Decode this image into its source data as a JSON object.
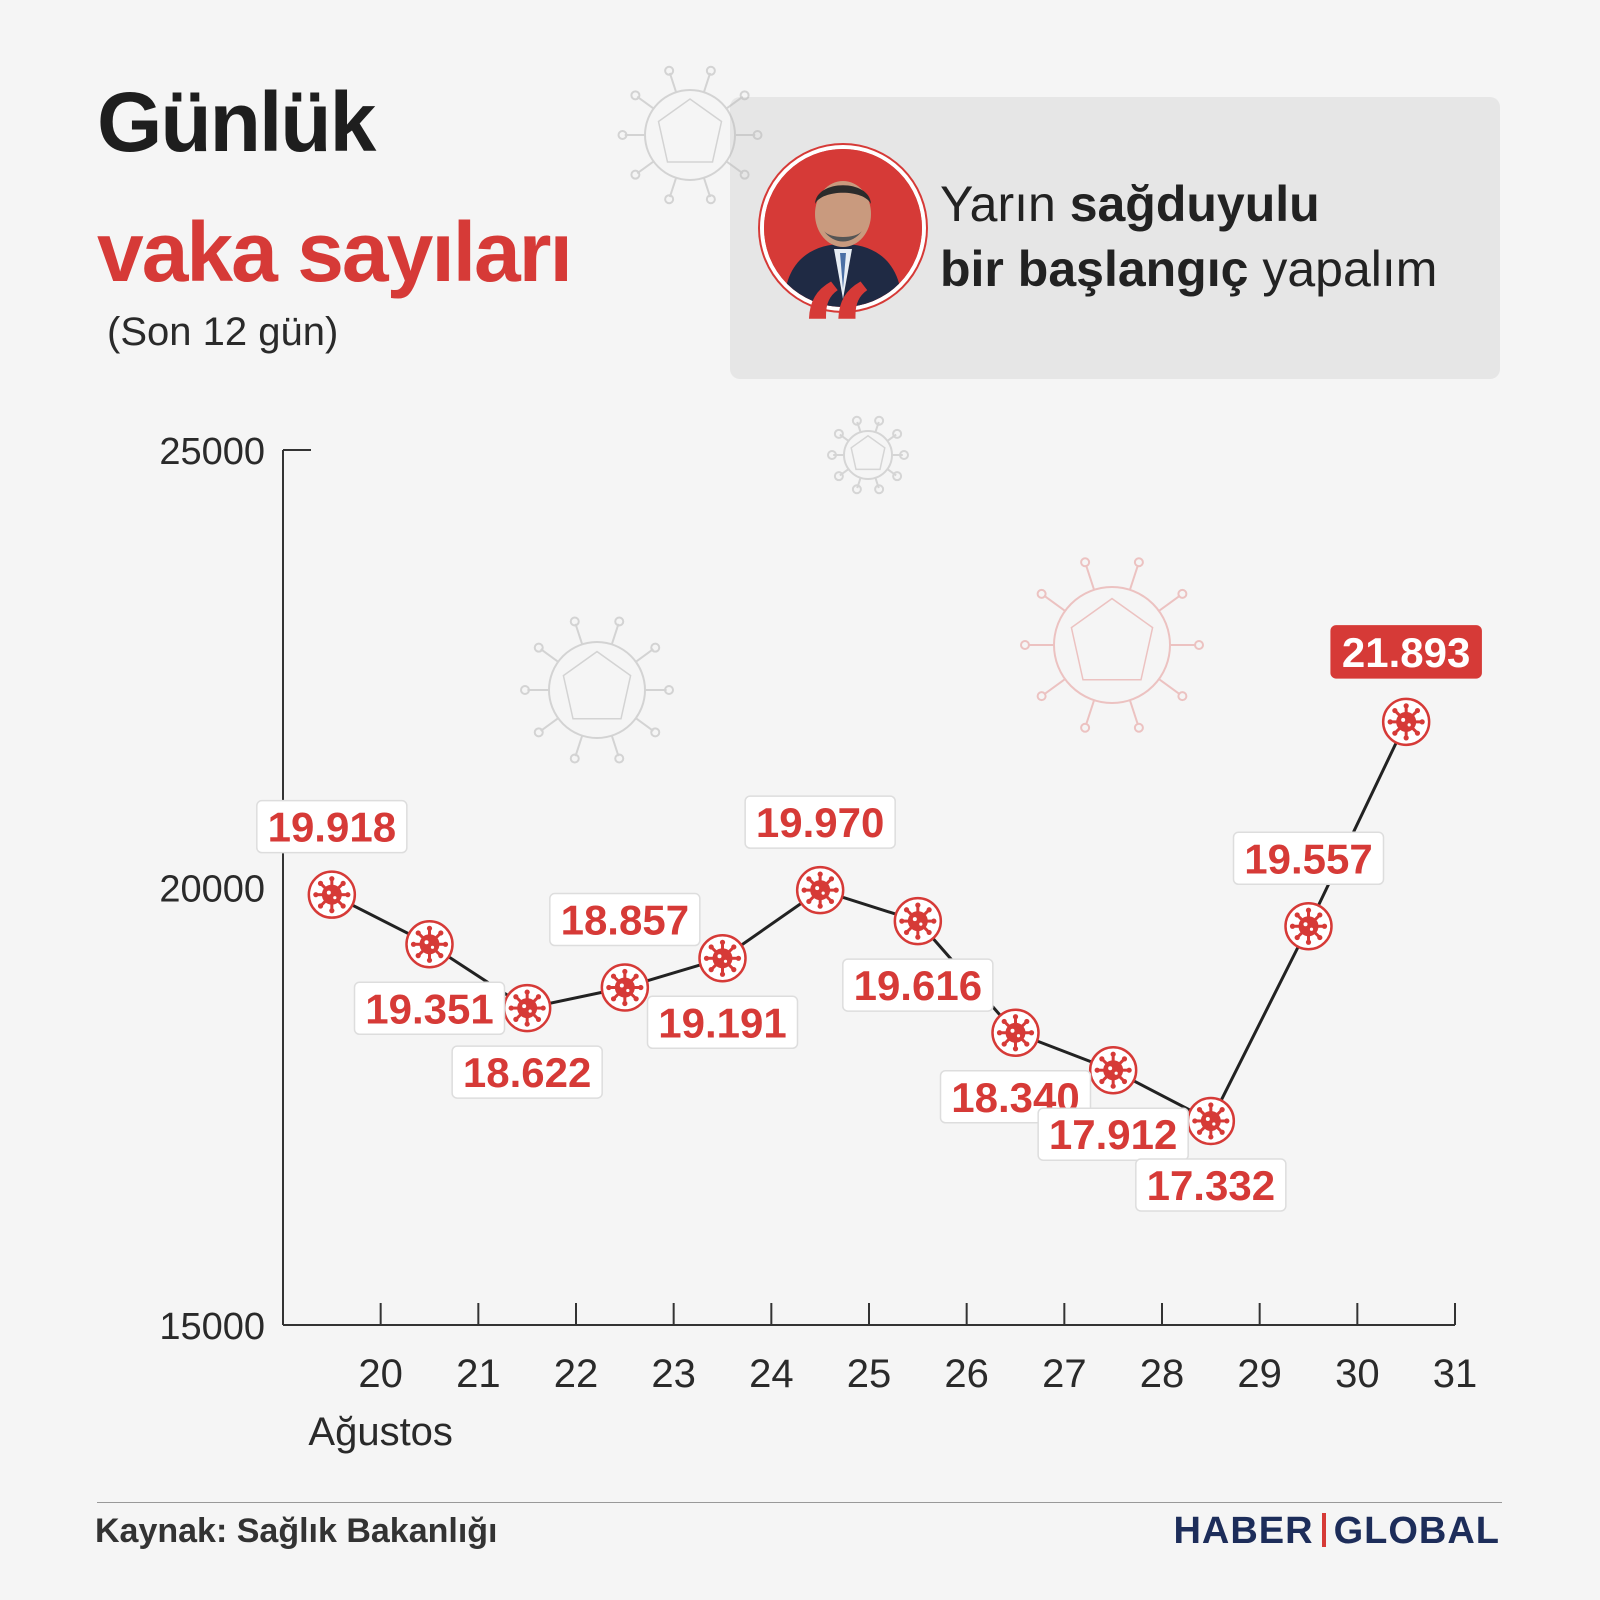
{
  "header": {
    "title_line1": "Günlük",
    "title_line2": "vaka sayıları",
    "subtitle": "(Son 12 gün)"
  },
  "quote": {
    "part1": "Yarın ",
    "part2": "sağduyulu",
    "part3": "bir başlangıç",
    "part4": " yapalım"
  },
  "footer": {
    "source": "Kaynak: Sağlık Bakanlığı",
    "brand_left": "HABER",
    "brand_right": "GLOBAL"
  },
  "colors": {
    "accent": "#d63a37",
    "brand": "#1d2d5a"
  },
  "chart_data": {
    "type": "line",
    "title": "Günlük vaka sayıları",
    "subtitle": "(Son 12 gün)",
    "x_ticks": [
      "20",
      "21",
      "22",
      "23",
      "24",
      "25",
      "26",
      "27",
      "28",
      "29",
      "30",
      "31"
    ],
    "xlabel": "Ağustos",
    "y_ticks": [
      "25000",
      "20000",
      "15000"
    ],
    "ylim": [
      15000,
      25000
    ],
    "values": [
      19918,
      19351,
      18622,
      18857,
      19191,
      19970,
      19616,
      18340,
      17912,
      17332,
      19557,
      21893
    ],
    "labels": [
      "19.918",
      "19.351",
      "18.622",
      "18.857",
      "19.191",
      "19.970",
      "19.616",
      "18.340",
      "17.912",
      "17.332",
      "19.557",
      "21.893"
    ],
    "label_positions": [
      "above",
      "below",
      "below",
      "above",
      "below",
      "above",
      "below",
      "below",
      "below",
      "below",
      "above",
      "above"
    ],
    "highlight_last": true,
    "grid": false
  }
}
